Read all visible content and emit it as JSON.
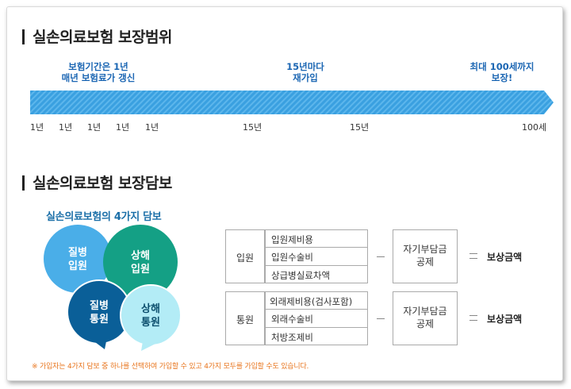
{
  "sections": {
    "range_title": "실손의료보험 보장범위",
    "coverage_title": "실손의료보험 보장담보"
  },
  "timeline": {
    "labels": {
      "renew_line1": "보험기간은 1년",
      "renew_line2": "매년 보험료가 갱신",
      "rejoin_line1": "15년마다",
      "rejoin_line2": "재가입",
      "max_line1": "최대 100세까지",
      "max_line2": "보장!"
    },
    "ticks": [
      "1년",
      "1년",
      "1년",
      "1년",
      "1년",
      "15년",
      "15년",
      "100세"
    ],
    "arrow_color": "#3aa0e0"
  },
  "coverage": {
    "subtitle": "실손의료보험의 4가지 담보",
    "bubbles": {
      "illness_inpatient": [
        "질병",
        "입원"
      ],
      "injury_inpatient": [
        "상해",
        "입원"
      ],
      "illness_outpatient": [
        "질병",
        "통원"
      ],
      "injury_outpatient": [
        "상해",
        "통원"
      ]
    },
    "bubble_colors": {
      "illness_inpatient": "#4aaee8",
      "injury_inpatient": "#14a085",
      "illness_outpatient": "#0a5f98",
      "injury_outpatient": "#b3ecf6"
    },
    "note": "※ 가입자는 4가지 담보 중 하나를 선택하여 가입할 수 있고 4가지 모두를 가입할 수도 있습니다.",
    "inpatient": {
      "label": "입원",
      "items": [
        "입원제비용",
        "입원수술비",
        "상급병실료차액"
      ],
      "deductible_line1": "자기부담금",
      "deductible_line2": "공제",
      "result": "보상금액"
    },
    "outpatient": {
      "label": "통원",
      "items": [
        "외래제비용(검사포함)",
        "외래수술비",
        "처방조제비"
      ],
      "deductible_line1": "자기부담금",
      "deductible_line2": "공제",
      "result": "보상금액"
    }
  }
}
